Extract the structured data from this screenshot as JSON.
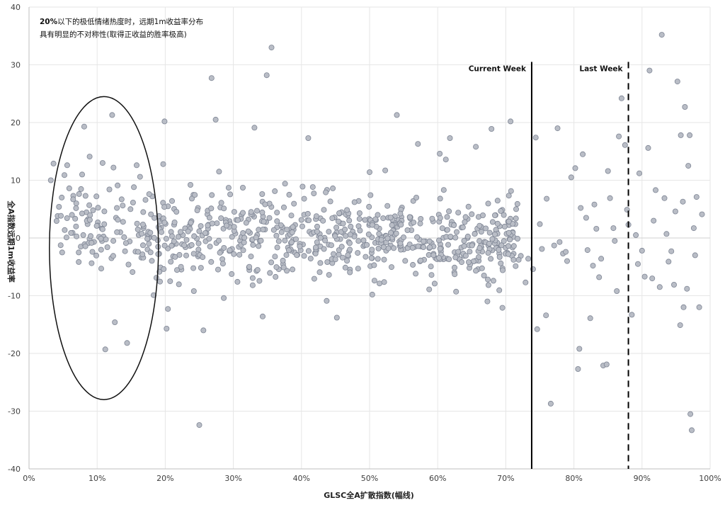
{
  "chart_data": {
    "type": "scatter",
    "title": "",
    "xlabel": "GLSC全A扩散指数(幅线)",
    "ylabel": "全A指数远期1m收益率",
    "xlim": [
      0,
      100
    ],
    "ylim": [
      -40,
      40
    ],
    "x_ticks": [
      "0%",
      "10%",
      "20%",
      "30%",
      "40%",
      "50%",
      "60%",
      "70%",
      "80%",
      "90%",
      "100%"
    ],
    "y_ticks": [
      "40",
      "30",
      "20",
      "10",
      "0",
      "-10",
      "-20",
      "-30",
      "-40"
    ],
    "grid": true,
    "colors": {
      "point_fill": "#b9bdc6",
      "point_stroke": "#7e8594",
      "grid": "#e6e6e6",
      "line": "#000000"
    },
    "annotation": {
      "bold": "20%",
      "line1_rest": "以下的极低情绪热度时，远期1m收益率分布",
      "line2": "具有明显的不对称性(取得正收益的胜率极高)"
    },
    "highlight_region": {
      "shape": "ellipse",
      "x_range": [
        3,
        19
      ],
      "y_range": [
        -28,
        24.5
      ]
    },
    "reference_lines": [
      {
        "label": "Current Week",
        "x": 73.8,
        "style": "solid"
      },
      {
        "label": "Last Week",
        "x": 88,
        "style": "dashed"
      }
    ],
    "points_note": "approximate; ~780 points",
    "points": [
      [
        3.2,
        10.0
      ],
      [
        3.6,
        12.9
      ],
      [
        4.2,
        3.8
      ],
      [
        4.8,
        7.0
      ],
      [
        5.2,
        10.9
      ],
      [
        5.5,
        0.1
      ],
      [
        5.6,
        12.6
      ],
      [
        6.3,
        4.0
      ],
      [
        6.5,
        7.3
      ],
      [
        7.3,
        -2.5
      ],
      [
        7.8,
        11.0
      ],
      [
        8.1,
        19.3
      ],
      [
        8.3,
        7.3
      ],
      [
        8.6,
        2.4
      ],
      [
        8.9,
        14.1
      ],
      [
        9.3,
        -2.4
      ],
      [
        9.9,
        7.2
      ],
      [
        10.1,
        2.7
      ],
      [
        10.6,
        -5.3
      ],
      [
        10.8,
        13.0
      ],
      [
        11.2,
        -19.3
      ],
      [
        11.8,
        8.4
      ],
      [
        12.2,
        21.3
      ],
      [
        12.4,
        12.2
      ],
      [
        12.6,
        -14.6
      ],
      [
        12.9,
        5.2
      ],
      [
        13.4,
        1.0
      ],
      [
        13.6,
        6.7
      ],
      [
        14.1,
        -2.3
      ],
      [
        14.4,
        -18.2
      ],
      [
        14.9,
        5.0
      ],
      [
        15.2,
        -5.9
      ],
      [
        15.8,
        12.6
      ],
      [
        16.3,
        10.6
      ],
      [
        16.5,
        -3.4
      ],
      [
        16.8,
        1.7
      ],
      [
        17.1,
        6.6
      ],
      [
        17.4,
        -2.0
      ],
      [
        17.9,
        4.1
      ],
      [
        18.3,
        -9.9
      ],
      [
        18.7,
        -6.9
      ],
      [
        19.1,
        3.8
      ],
      [
        19.7,
        12.8
      ],
      [
        19.9,
        20.2
      ],
      [
        20.2,
        -15.7
      ],
      [
        20.4,
        -12.3
      ],
      [
        21.0,
        6.4
      ],
      [
        21.3,
        2.3
      ],
      [
        22.6,
        0.5
      ],
      [
        23.7,
        9.2
      ],
      [
        24.2,
        -9.2
      ],
      [
        24.8,
        5.2
      ],
      [
        25.0,
        -32.4
      ],
      [
        25.6,
        -16.0
      ],
      [
        26.2,
        4.1
      ],
      [
        26.8,
        27.7
      ],
      [
        27.4,
        20.5
      ],
      [
        27.9,
        11.5
      ],
      [
        28.6,
        -10.4
      ],
      [
        29.3,
        8.7
      ],
      [
        29.8,
        0.2
      ],
      [
        30.6,
        -7.6
      ],
      [
        31.2,
        4.0
      ],
      [
        32.2,
        3.2
      ],
      [
        33.1,
        19.1
      ],
      [
        33.7,
        -1.4
      ],
      [
        34.3,
        -13.6
      ],
      [
        34.9,
        28.2
      ],
      [
        35.6,
        33.0
      ],
      [
        36.4,
        4.4
      ],
      [
        37.3,
        -4.5
      ],
      [
        38.2,
        7.5
      ],
      [
        39.0,
        -2.5
      ],
      [
        40.4,
        6.8
      ],
      [
        41.0,
        17.3
      ],
      [
        42.0,
        -2.6
      ],
      [
        42.8,
        3.4
      ],
      [
        43.7,
        -10.9
      ],
      [
        44.6,
        8.6
      ],
      [
        45.2,
        -13.8
      ],
      [
        46.1,
        0.9
      ],
      [
        47.0,
        -2.3
      ],
      [
        48.4,
        6.4
      ],
      [
        49.1,
        -1.4
      ],
      [
        50.0,
        11.4
      ],
      [
        50.4,
        -9.8
      ],
      [
        51.2,
        4.0
      ],
      [
        52.3,
        11.7
      ],
      [
        53.1,
        -1.3
      ],
      [
        54.0,
        21.3
      ],
      [
        55.0,
        -2.0
      ],
      [
        56.0,
        3.6
      ],
      [
        57.1,
        16.3
      ],
      [
        58.0,
        -0.6
      ],
      [
        59.1,
        -6.4
      ],
      [
        60.3,
        14.6
      ],
      [
        61.2,
        13.6
      ],
      [
        61.8,
        17.3
      ],
      [
        62.7,
        -9.3
      ],
      [
        63.5,
        1.8
      ],
      [
        64.4,
        3.3
      ],
      [
        65.6,
        15.8
      ],
      [
        66.8,
        -6.5
      ],
      [
        67.3,
        -11.0
      ],
      [
        67.9,
        18.9
      ],
      [
        68.6,
        1.2
      ],
      [
        69.5,
        -12.1
      ],
      [
        70.7,
        20.2
      ],
      [
        71.4,
        2.4
      ],
      [
        72.2,
        -3.1
      ],
      [
        72.9,
        -7.7
      ],
      [
        73.3,
        -3.6
      ],
      [
        74.4,
        17.4
      ],
      [
        74.6,
        -15.8
      ],
      [
        75.3,
        -1.9
      ],
      [
        75.9,
        -13.4
      ],
      [
        76.6,
        -28.7
      ],
      [
        77.1,
        -1.3
      ],
      [
        77.6,
        19.0
      ],
      [
        78.4,
        -2.7
      ],
      [
        79.0,
        -4.0
      ],
      [
        79.6,
        10.5
      ],
      [
        80.2,
        12.1
      ],
      [
        80.6,
        -22.7
      ],
      [
        80.8,
        -19.2
      ],
      [
        81.3,
        14.5
      ],
      [
        81.8,
        3.5
      ],
      [
        82.4,
        -13.9
      ],
      [
        82.8,
        -4.8
      ],
      [
        83.3,
        1.6
      ],
      [
        83.7,
        -6.8
      ],
      [
        84.3,
        -22.1
      ],
      [
        84.8,
        -21.9
      ],
      [
        85.3,
        6.9
      ],
      [
        85.8,
        1.7
      ],
      [
        86.3,
        -9.2
      ],
      [
        86.6,
        17.6
      ],
      [
        87.0,
        24.2
      ],
      [
        87.5,
        16.1
      ],
      [
        88.0,
        2.3
      ],
      [
        88.5,
        -13.3
      ],
      [
        89.1,
        0.5
      ],
      [
        89.6,
        11.2
      ],
      [
        90.0,
        -2.2
      ],
      [
        90.4,
        -6.7
      ],
      [
        90.9,
        15.6
      ],
      [
        91.1,
        29.0
      ],
      [
        91.5,
        -7.0
      ],
      [
        92.0,
        8.3
      ],
      [
        92.6,
        -8.5
      ],
      [
        92.9,
        35.2
      ],
      [
        93.3,
        6.9
      ],
      [
        93.9,
        -4.1
      ],
      [
        94.3,
        -2.3
      ],
      [
        94.7,
        -8.1
      ],
      [
        95.2,
        27.1
      ],
      [
        95.6,
        -15.1
      ],
      [
        95.7,
        17.8
      ],
      [
        96.1,
        -12.0
      ],
      [
        96.3,
        22.7
      ],
      [
        96.6,
        -8.8
      ],
      [
        96.8,
        12.5
      ],
      [
        97.0,
        17.8
      ],
      [
        97.1,
        -30.5
      ],
      [
        97.3,
        -33.3
      ],
      [
        97.6,
        1.7
      ],
      [
        98.0,
        7.1
      ],
      [
        98.4,
        -12.0
      ],
      [
        98.8,
        4.1
      ],
      [
        4.4,
        5.4
      ],
      [
        5.9,
        8.6
      ],
      [
        6.9,
        2.0
      ],
      [
        7.6,
        -1.5
      ],
      [
        9.4,
        4.8
      ],
      [
        10.3,
        0.2
      ],
      [
        11.5,
        -1.6
      ],
      [
        12.1,
        -3.5
      ],
      [
        13.0,
        9.1
      ],
      [
        13.8,
        2.8
      ],
      [
        14.6,
        -4.6
      ],
      [
        15.4,
        8.8
      ],
      [
        16.1,
        0.5
      ],
      [
        17.6,
        -1.0
      ],
      [
        18.1,
        7.2
      ],
      [
        18.9,
        -0.4
      ],
      [
        19.3,
        -5.1
      ],
      [
        74.0,
        -5.4
      ],
      [
        75.0,
        2.4
      ],
      [
        76.0,
        6.8
      ],
      [
        77.9,
        -0.7
      ],
      [
        78.8,
        -2.4
      ],
      [
        81.0,
        5.2
      ],
      [
        82.0,
        -2.1
      ],
      [
        83.0,
        5.8
      ],
      [
        84.0,
        -3.6
      ],
      [
        85.0,
        11.6
      ],
      [
        86.0,
        -0.5
      ],
      [
        87.8,
        4.9
      ],
      [
        89.4,
        -4.5
      ],
      [
        91.7,
        3.0
      ],
      [
        93.6,
        0.7
      ],
      [
        94.9,
        4.6
      ],
      [
        96.0,
        6.3
      ],
      [
        97.8,
        -3.0
      ]
    ]
  }
}
